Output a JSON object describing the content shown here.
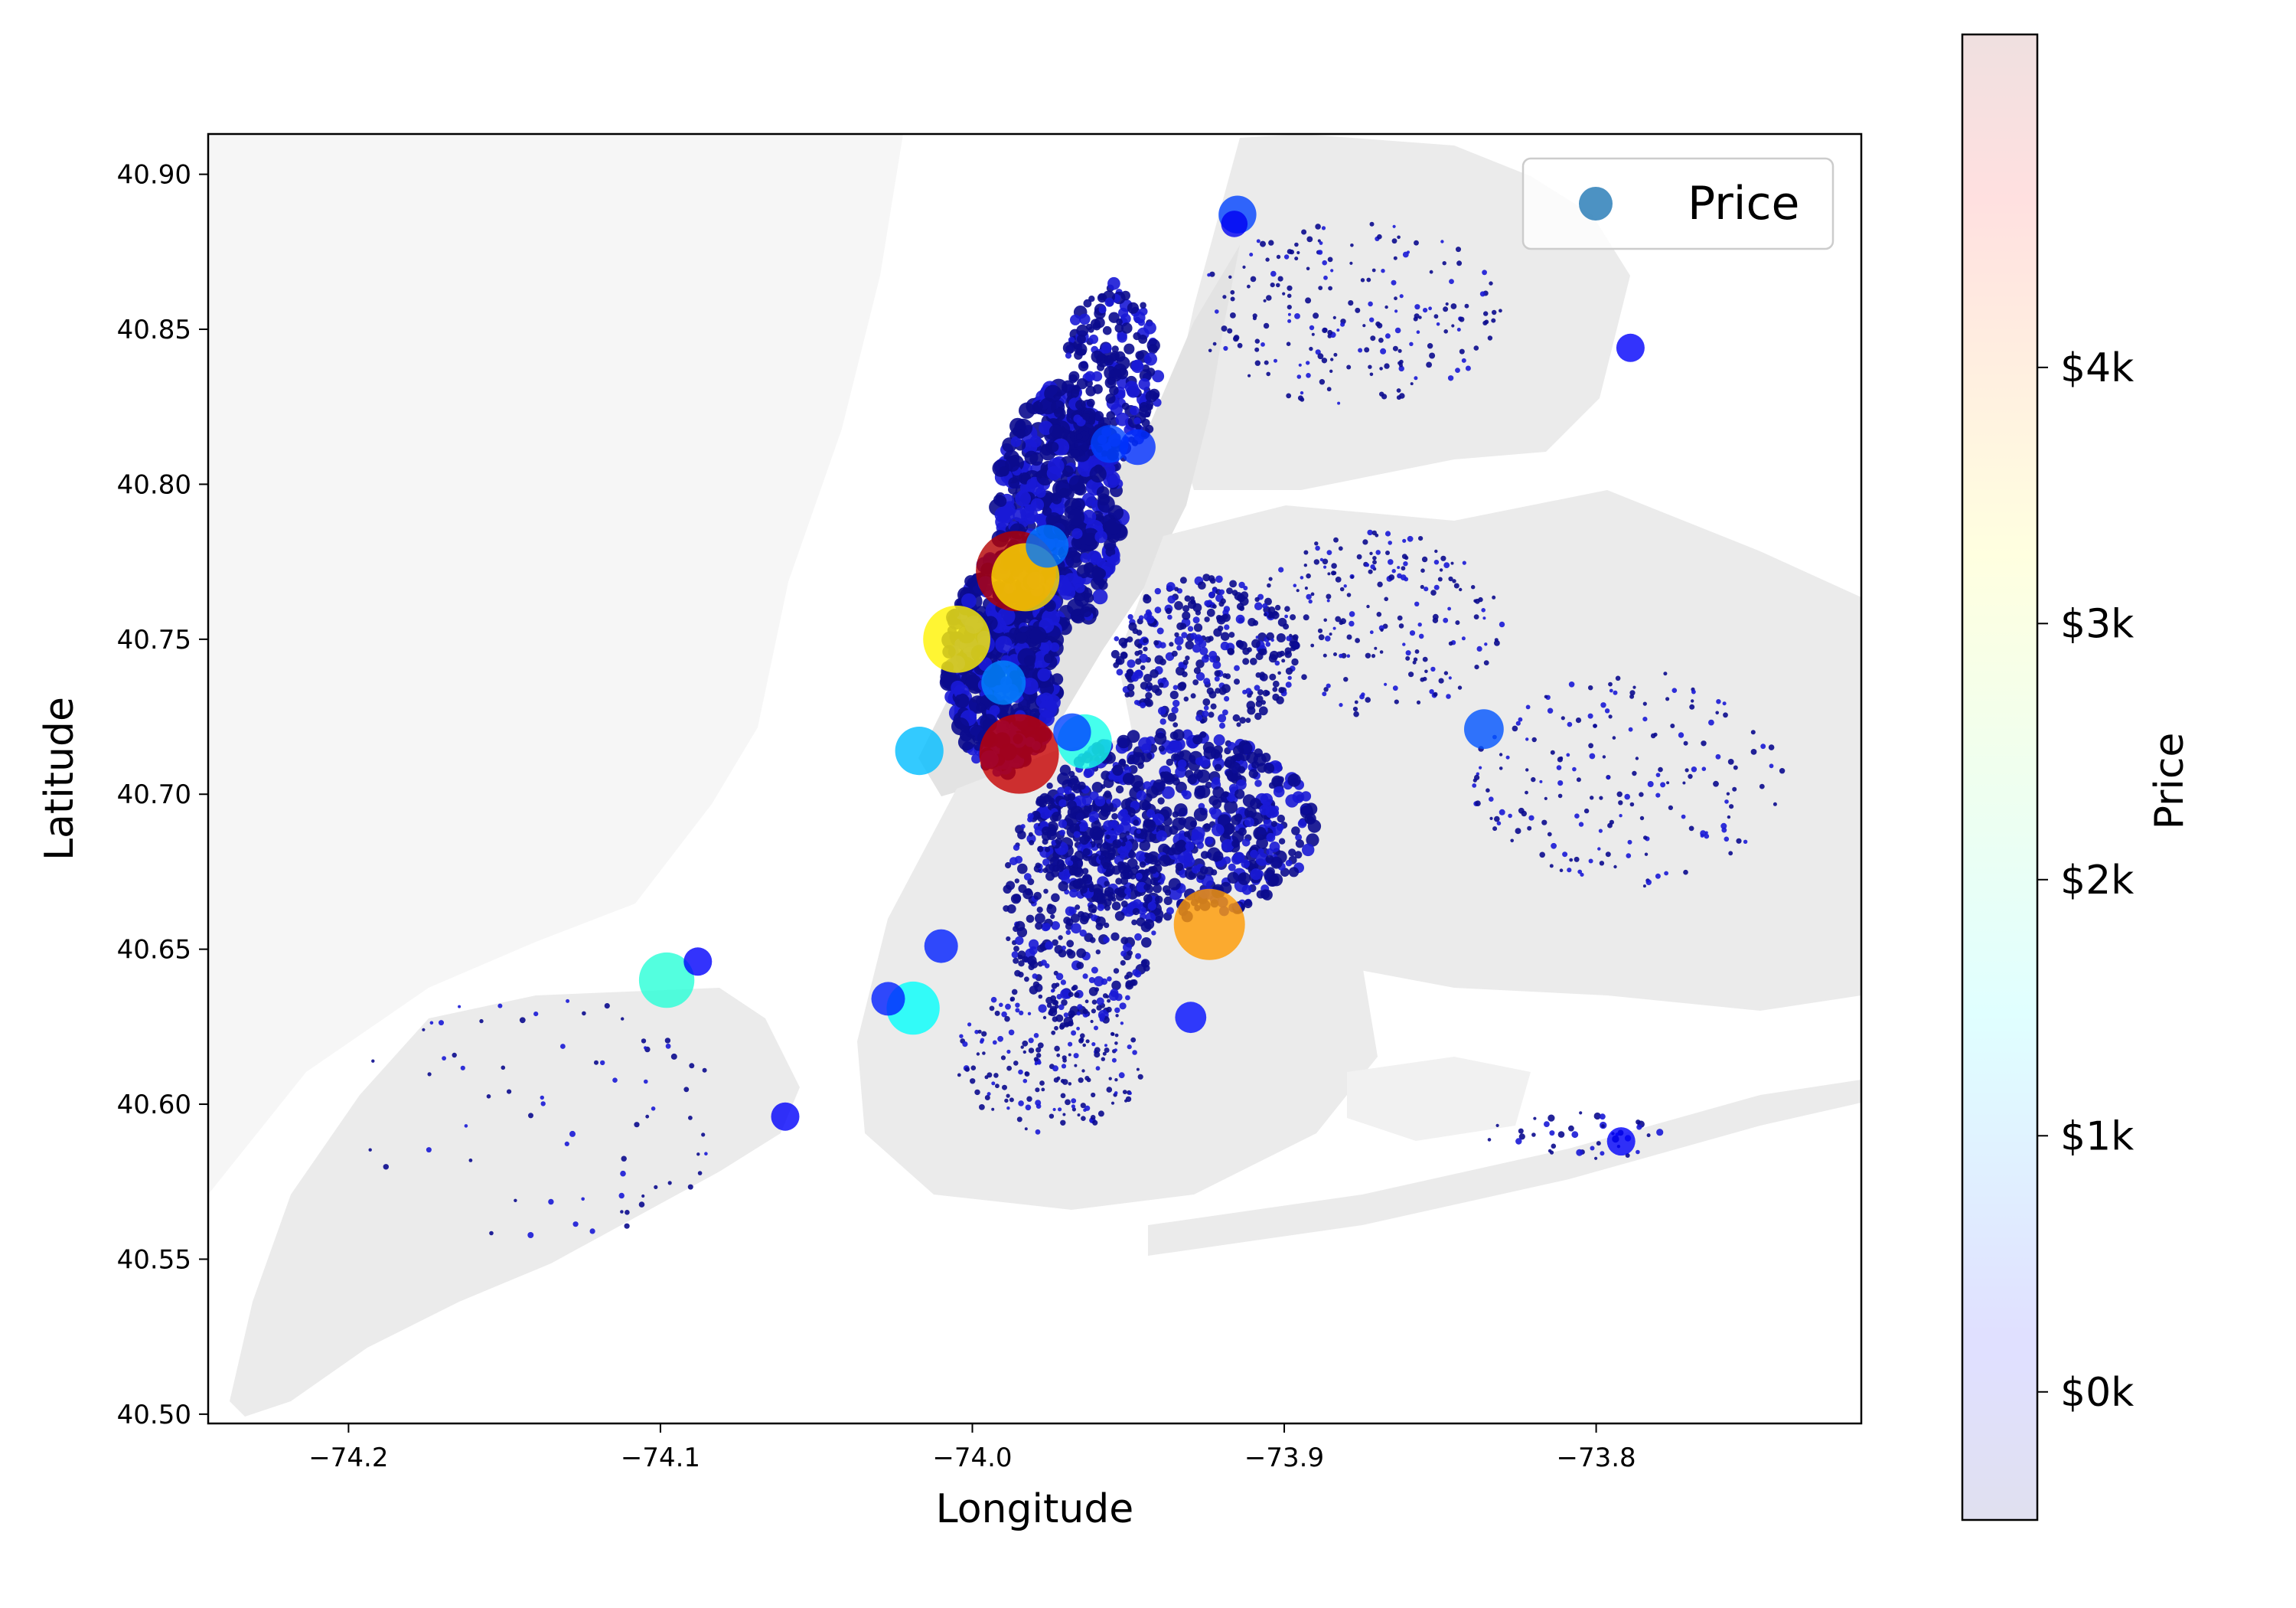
{
  "chart_data": {
    "type": "scatter",
    "title": "",
    "xlabel": "Longitude",
    "ylabel": "Latitude",
    "xlim": [
      -74.245,
      -73.715
    ],
    "ylim": [
      40.497,
      40.913
    ],
    "xticks": [
      -74.2,
      -74.1,
      -74.0,
      -73.9,
      -73.8
    ],
    "xtick_labels": [
      "−74.2",
      "−74.1",
      "−74.0",
      "−73.9",
      "−73.8"
    ],
    "yticks": [
      40.5,
      40.55,
      40.6,
      40.65,
      40.7,
      40.75,
      40.8,
      40.85,
      40.9
    ],
    "ytick_labels": [
      "40.50",
      "40.55",
      "40.60",
      "40.65",
      "40.70",
      "40.75",
      "40.80",
      "40.85",
      "40.90"
    ],
    "grid": false,
    "legend": {
      "position": "top-right",
      "entries": [
        "Price"
      ]
    },
    "colormap": "jet",
    "colorbar": {
      "label": "Price",
      "range": [
        -500,
        5300
      ],
      "ticks": [
        0,
        1000,
        2000,
        3000,
        4000
      ],
      "tick_labels": [
        "$0k",
        "$1k",
        "$2k",
        "$3k",
        "$4k"
      ]
    },
    "background_map": "New York City borough shapes (light gray)",
    "points": [
      {
        "x": -73.986,
        "y": 40.772,
        "price": 5000
      },
      {
        "x": -73.985,
        "y": 40.713,
        "price": 4900
      },
      {
        "x": -74.005,
        "y": 40.75,
        "price": 3200
      },
      {
        "x": -73.983,
        "y": 40.77,
        "price": 3300
      },
      {
        "x": -73.924,
        "y": 40.658,
        "price": 3700
      },
      {
        "x": -74.098,
        "y": 40.64,
        "price": 1900
      },
      {
        "x": -74.019,
        "y": 40.631,
        "price": 1700
      },
      {
        "x": -73.964,
        "y": 40.717,
        "price": 1800
      },
      {
        "x": -74.017,
        "y": 40.714,
        "price": 1300
      },
      {
        "x": -73.836,
        "y": 40.721,
        "price": 700
      },
      {
        "x": -73.915,
        "y": 40.887,
        "price": 600
      },
      {
        "x": -73.976,
        "y": 40.78,
        "price": 900
      },
      {
        "x": -73.99,
        "y": 40.736,
        "price": 1000
      },
      {
        "x": -74.01,
        "y": 40.651,
        "price": 400
      },
      {
        "x": -73.956,
        "y": 40.813,
        "price": 600
      },
      {
        "x": -73.947,
        "y": 40.812,
        "price": 500
      },
      {
        "x": -73.968,
        "y": 40.72,
        "price": 600
      },
      {
        "x": -73.93,
        "y": 40.628,
        "price": 300
      },
      {
        "x": -74.027,
        "y": 40.634,
        "price": 400
      },
      {
        "x": -73.789,
        "y": 40.844,
        "price": 200
      },
      {
        "x": -73.792,
        "y": 40.588,
        "price": 200
      },
      {
        "x": -74.06,
        "y": 40.596,
        "price": 200
      },
      {
        "x": -74.088,
        "y": 40.646,
        "price": 200
      },
      {
        "x": -73.916,
        "y": 40.884,
        "price": 150
      }
    ]
  }
}
